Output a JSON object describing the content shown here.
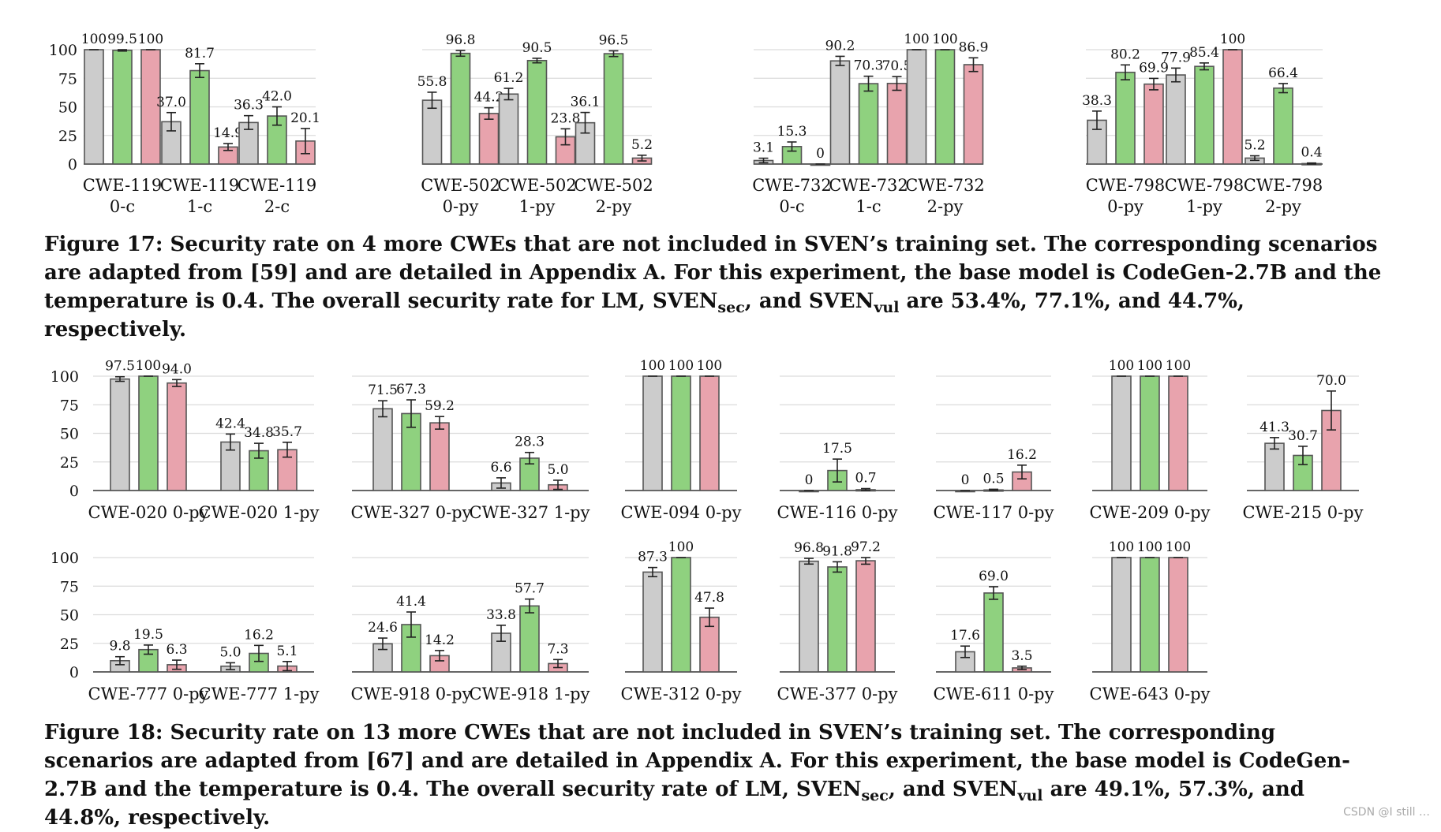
{
  "colors": {
    "LM": "#cccccc",
    "SVEN_sec": "#8fd17f",
    "SVEN_vul": "#e8a3ad",
    "grid": "#dcdcdc",
    "axis": "#333333"
  },
  "chart_data": [
    {
      "type": "bar",
      "figure": "Figure 17",
      "series_names": [
        "LM",
        "SVEN_sec",
        "SVEN_vul"
      ],
      "ylim": [
        0,
        100
      ],
      "yticks": [
        "0",
        "25",
        "50",
        "75",
        "100"
      ],
      "groups": [
        {
          "categories": [
            {
              "line1": "CWE-119",
              "line2": "0-c",
              "values": [
                100,
                99.5,
                100
              ],
              "labels": [
                "100",
                "99.5",
                "100"
              ],
              "errors": [
                0,
                0.7,
                0
              ]
            },
            {
              "line1": "CWE-119",
              "line2": "1-c",
              "values": [
                37.0,
                81.7,
                14.9
              ],
              "labels": [
                "37.0",
                "81.7",
                "14.9"
              ],
              "errors": [
                8,
                6,
                3
              ]
            },
            {
              "line1": "CWE-119",
              "line2": "2-c",
              "values": [
                36.3,
                42.0,
                20.1
              ],
              "labels": [
                "36.3",
                "42.0",
                "20.1"
              ],
              "errors": [
                6,
                8,
                11
              ]
            }
          ]
        },
        {
          "categories": [
            {
              "line1": "CWE-502",
              "line2": "0-py",
              "values": [
                55.8,
                96.8,
                44.2
              ],
              "labels": [
                "55.8",
                "96.8",
                "44.2"
              ],
              "errors": [
                7,
                2.5,
                5
              ]
            },
            {
              "line1": "CWE-502",
              "line2": "1-py",
              "values": [
                61.2,
                90.5,
                23.8
              ],
              "labels": [
                "61.2",
                "90.5",
                "23.8"
              ],
              "errors": [
                5,
                2,
                7
              ]
            },
            {
              "line1": "CWE-502",
              "line2": "2-py",
              "values": [
                36.1,
                96.5,
                5.2
              ],
              "labels": [
                "36.1",
                "96.5",
                "5.2"
              ],
              "errors": [
                9,
                2.5,
                2.5
              ]
            }
          ]
        },
        {
          "categories": [
            {
              "line1": "CWE-732",
              "line2": "0-c",
              "values": [
                3.1,
                15.3,
                0
              ],
              "labels": [
                "3.1",
                "15.3",
                "0"
              ],
              "errors": [
                2,
                4,
                0
              ]
            },
            {
              "line1": "CWE-732",
              "line2": "1-c",
              "values": [
                90.2,
                70.3,
                70.5
              ],
              "labels": [
                "90.2",
                "70.3",
                "70.5"
              ],
              "errors": [
                4,
                6.5,
                6
              ]
            },
            {
              "line1": "CWE-732",
              "line2": "2-py",
              "values": [
                100,
                100,
                86.9
              ],
              "labels": [
                "100",
                "100",
                "86.9"
              ],
              "errors": [
                0,
                0,
                6
              ]
            }
          ]
        },
        {
          "categories": [
            {
              "line1": "CWE-798",
              "line2": "0-py",
              "values": [
                38.3,
                80.2,
                69.9
              ],
              "labels": [
                "38.3",
                "80.2",
                "69.9"
              ],
              "errors": [
                8,
                6.5,
                5
              ]
            },
            {
              "line1": "CWE-798",
              "line2": "1-py",
              "values": [
                77.9,
                85.4,
                100
              ],
              "labels": [
                "77.9",
                "85.4",
                "100"
              ],
              "errors": [
                6,
                3,
                0
              ]
            },
            {
              "line1": "CWE-798",
              "line2": "2-py",
              "values": [
                5.2,
                66.4,
                0.4
              ],
              "labels": [
                "5.2",
                "66.4",
                "0.4"
              ],
              "errors": [
                2,
                4,
                0.5
              ]
            }
          ]
        }
      ]
    },
    {
      "type": "bar",
      "figure": "Figure 18",
      "series_names": [
        "LM",
        "SVEN_sec",
        "SVEN_vul"
      ],
      "ylim": [
        0,
        100
      ],
      "yticks": [
        "0",
        "25",
        "50",
        "75",
        "100"
      ],
      "rows": [
        {
          "groups": [
            {
              "categories": [
                {
                  "label": "CWE-020 0-py",
                  "values": [
                    97.5,
                    100,
                    94.0
                  ],
                  "labels": [
                    "97.5",
                    "100",
                    "94.0"
                  ],
                  "errors": [
                    2,
                    0,
                    3
                  ]
                },
                {
                  "label": "CWE-020 1-py",
                  "values": [
                    42.4,
                    34.8,
                    35.7
                  ],
                  "labels": [
                    "42.4",
                    "34.8",
                    "35.7"
                  ],
                  "errors": [
                    7,
                    6.5,
                    6.5
                  ]
                }
              ]
            },
            {
              "categories": [
                {
                  "label": "CWE-327 0-py",
                  "values": [
                    71.5,
                    67.3,
                    59.2
                  ],
                  "labels": [
                    "71.5",
                    "67.3",
                    "59.2"
                  ],
                  "errors": [
                    7,
                    12,
                    5.5
                  ]
                },
                {
                  "label": "CWE-327 1-py",
                  "values": [
                    6.6,
                    28.3,
                    5.0
                  ],
                  "labels": [
                    "6.6",
                    "28.3",
                    "5.0"
                  ],
                  "errors": [
                    4.5,
                    5,
                    4
                  ]
                }
              ]
            },
            {
              "categories": [
                {
                  "label": "CWE-094 0-py",
                  "values": [
                    100,
                    100,
                    100
                  ],
                  "labels": [
                    "100",
                    "100",
                    "100"
                  ],
                  "errors": [
                    0,
                    0,
                    0
                  ]
                }
              ]
            },
            {
              "categories": [
                {
                  "label": "CWE-116 0-py",
                  "values": [
                    0,
                    17.5,
                    0.7
                  ],
                  "labels": [
                    "0",
                    "17.5",
                    "0.7"
                  ],
                  "errors": [
                    0,
                    10,
                    1
                  ]
                }
              ]
            },
            {
              "categories": [
                {
                  "label": "CWE-117 0-py",
                  "values": [
                    0,
                    0.5,
                    16.2
                  ],
                  "labels": [
                    "0",
                    "0.5",
                    "16.2"
                  ],
                  "errors": [
                    0,
                    0.6,
                    6
                  ]
                }
              ]
            },
            {
              "categories": [
                {
                  "label": "CWE-209 0-py",
                  "values": [
                    100,
                    100,
                    100
                  ],
                  "labels": [
                    "100",
                    "100",
                    "100"
                  ],
                  "errors": [
                    0,
                    0,
                    0
                  ]
                }
              ]
            },
            {
              "categories": [
                {
                  "label": "CWE-215 0-py",
                  "values": [
                    41.3,
                    30.7,
                    70.0
                  ],
                  "labels": [
                    "41.3",
                    "30.7",
                    "70.0"
                  ],
                  "errors": [
                    5,
                    8,
                    17
                  ]
                }
              ]
            }
          ]
        },
        {
          "groups": [
            {
              "categories": [
                {
                  "label": "CWE-777 0-py",
                  "values": [
                    9.8,
                    19.5,
                    6.3
                  ],
                  "labels": [
                    "9.8",
                    "19.5",
                    "6.3"
                  ],
                  "errors": [
                    3.5,
                    4,
                    4
                  ]
                },
                {
                  "label": "CWE-777 1-py",
                  "values": [
                    5.0,
                    16.2,
                    5.1
                  ],
                  "labels": [
                    "5.0",
                    "16.2",
                    "5.1"
                  ],
                  "errors": [
                    3,
                    7,
                    4
                  ]
                }
              ]
            },
            {
              "categories": [
                {
                  "label": "CWE-918 0-py",
                  "values": [
                    24.6,
                    41.4,
                    14.2
                  ],
                  "labels": [
                    "24.6",
                    "41.4",
                    "14.2"
                  ],
                  "errors": [
                    5,
                    11,
                    4.5
                  ]
                },
                {
                  "label": "CWE-918 1-py",
                  "values": [
                    33.8,
                    57.7,
                    7.3
                  ],
                  "labels": [
                    "33.8",
                    "57.7",
                    "7.3"
                  ],
                  "errors": [
                    7,
                    6,
                    3.5
                  ]
                }
              ]
            },
            {
              "categories": [
                {
                  "label": "CWE-312 0-py",
                  "values": [
                    87.3,
                    100,
                    47.8
                  ],
                  "labels": [
                    "87.3",
                    "100",
                    "47.8"
                  ],
                  "errors": [
                    4,
                    0,
                    8
                  ]
                }
              ]
            },
            {
              "categories": [
                {
                  "label": "CWE-377 0-py",
                  "values": [
                    96.8,
                    91.8,
                    97.2
                  ],
                  "labels": [
                    "96.8",
                    "91.8",
                    "97.2"
                  ],
                  "errors": [
                    2.5,
                    4.5,
                    3
                  ]
                }
              ]
            },
            {
              "categories": [
                {
                  "label": "CWE-611 0-py",
                  "values": [
                    17.6,
                    69.0,
                    3.5
                  ],
                  "labels": [
                    "17.6",
                    "69.0",
                    "3.5"
                  ],
                  "errors": [
                    5,
                    5.5,
                    1.5
                  ]
                }
              ]
            },
            {
              "categories": [
                {
                  "label": "CWE-643 0-py",
                  "values": [
                    100,
                    100,
                    100
                  ],
                  "labels": [
                    "100",
                    "100",
                    "100"
                  ],
                  "errors": [
                    0,
                    0,
                    0
                  ]
                }
              ]
            }
          ]
        }
      ]
    }
  ],
  "captions": {
    "fig17": {
      "part1": "Figure 17: Security rate on 4 more CWEs that are not included in SVEN’s training set. The corresponding scenarios are adapted from [59] and are detailed in Appendix A. For this experiment, the base model is CodeGen-2.7B and the temperature is 0.4. The overall security rate for LM, SVEN",
      "sub1": "sec",
      "part2": ", and SVEN",
      "sub2": "vul",
      "part3": " are 53.4%, 77.1%, and 44.7%, respectively."
    },
    "fig18": {
      "part1": "Figure 18: Security rate on 13 more CWEs that are not included in SVEN’s training set. The corresponding scenarios are adapted from [67] and are detailed in Appendix A. For this experiment, the base model is CodeGen-2.7B and the temperature is 0.4. The overall security rate of LM, SVEN",
      "sub1": "sec",
      "part2": ", and SVEN",
      "sub2": "vul",
      "part3": " are 49.1%, 57.3%, and 44.8%, respectively."
    }
  },
  "watermark": "CSDN @I still …"
}
